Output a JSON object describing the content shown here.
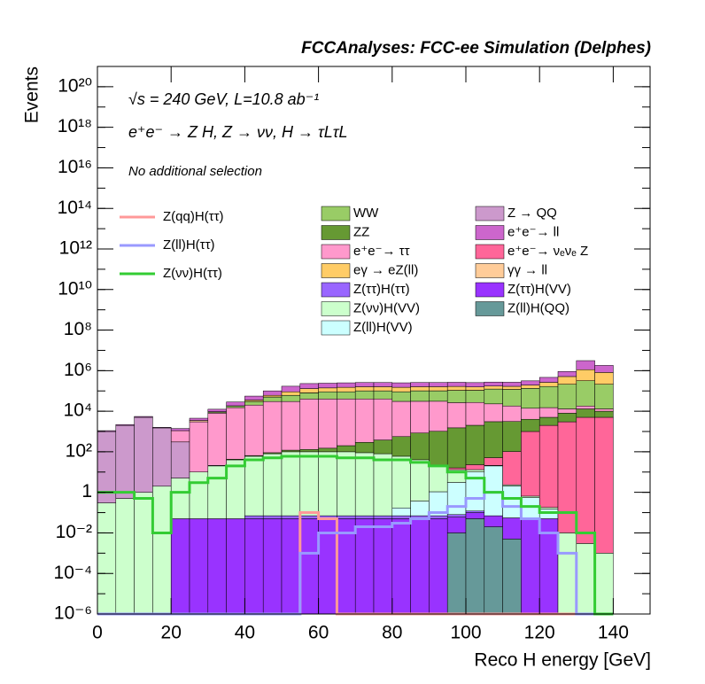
{
  "chart_data": {
    "type": "stacked_histogram",
    "title": "FCCAnalyses: FCC-ee Simulation (Delphes)",
    "annotations": [
      "√s = 240 GeV, L=10.8 ab⁻¹",
      "e⁺e⁻ → Z H, Z → νν, H → τLτL",
      "No additional selection"
    ],
    "x_label": "Reco H energy [GeV]",
    "y_label": "Events",
    "log_y": true,
    "xlim": [
      0,
      150
    ],
    "ylim": [
      1e-06,
      1e+21
    ],
    "xticks": [
      0,
      20,
      40,
      60,
      80,
      100,
      120,
      140
    ],
    "yticks": [
      {
        "value": 1e-06,
        "label": "10⁻⁶"
      },
      {
        "value": 0.0001,
        "label": "10⁻⁴"
      },
      {
        "value": 0.01,
        "label": "10⁻²"
      },
      1,
      {
        "value": 100,
        "label": "10²"
      },
      {
        "value": 10000.0,
        "label": "10⁴"
      },
      {
        "value": 1000000.0,
        "label": "10⁶"
      },
      {
        "value": 100000000.0,
        "label": "10⁸"
      },
      {
        "value": 10000000000.0,
        "label": "10¹⁰"
      },
      {
        "value": 1000000000000.0,
        "label": "10¹²"
      },
      {
        "value": 100000000000000.0,
        "label": "10¹⁴"
      },
      {
        "value": 1e+16,
        "label": "10¹⁶"
      },
      {
        "value": 1e+18,
        "label": "10¹⁸"
      },
      {
        "value": 1e+20,
        "label": "10²⁰"
      }
    ],
    "bins": [
      0,
      5,
      10,
      15,
      20,
      25,
      30,
      35,
      40,
      45,
      50,
      55,
      60,
      65,
      70,
      75,
      80,
      85,
      90,
      95,
      100,
      105,
      110,
      115,
      120,
      125,
      130,
      135,
      140
    ],
    "series": [
      {
        "name": "WW",
        "color": "#99cc66",
        "values": [
          0,
          0,
          0,
          0,
          0,
          0,
          1000,
          3000,
          10000,
          20000,
          30000,
          40000,
          50000,
          50000,
          60000,
          60000,
          60000,
          70000,
          70000,
          80000,
          80000,
          100000,
          100000,
          120000,
          150000,
          200000,
          300000,
          200000
        ]
      },
      {
        "name": "ZZ",
        "color": "#669933",
        "values": [
          0,
          0,
          0,
          0,
          0,
          0,
          1,
          3,
          5,
          10,
          20,
          30,
          50,
          100,
          200,
          300,
          500,
          800,
          1000,
          1500,
          2000,
          3000,
          3000,
          3000,
          3000,
          5000,
          8000,
          5000
        ]
      },
      {
        "name": "e⁺e⁻→ ττ",
        "color": "#ff99cc",
        "values": [
          0,
          0,
          0,
          0,
          800,
          3000,
          8000,
          15000,
          20000,
          30000,
          30000,
          40000,
          40000,
          40000,
          40000,
          40000,
          30000,
          30000,
          30000,
          25000,
          25000,
          20000,
          15000,
          10000,
          10000,
          5000,
          5000,
          3000
        ]
      },
      {
        "name": "eγ → eZ(ll)",
        "color": "#ffcc66",
        "values": [
          0,
          0,
          0,
          0,
          0,
          0,
          0,
          0,
          5000,
          10000,
          30000,
          50000,
          50000,
          60000,
          60000,
          60000,
          60000,
          60000,
          60000,
          60000,
          50000,
          50000,
          50000,
          60000,
          100000,
          300000,
          800000,
          600000
        ]
      },
      {
        "name": "Z(ττ)H(ττ)",
        "color": "#9966ff",
        "values": [
          0,
          0,
          0,
          0,
          0,
          0,
          0,
          0,
          0.02,
          0.02,
          0.02,
          0.02,
          0.02,
          0.02,
          0.02,
          0.02,
          0.02,
          0.02,
          0.02,
          0.02,
          0.02,
          0,
          0,
          0,
          0,
          0,
          0,
          0
        ]
      },
      {
        "name": "Z(νν)H(VV)",
        "color": "#ccffcc",
        "values": [
          0.3,
          0.5,
          1,
          2,
          5,
          10,
          20,
          40,
          60,
          80,
          100,
          100,
          100,
          100,
          90,
          80,
          60,
          40,
          20,
          10,
          3,
          1,
          0.3,
          0.1,
          0.03,
          0.01,
          0.003,
          0.001
        ]
      },
      {
        "name": "Z(ll)H(VV)",
        "color": "#ccffff",
        "values": [
          0,
          0,
          0,
          0,
          0,
          0,
          0,
          0,
          0,
          0,
          0,
          0,
          0,
          0,
          0,
          0,
          0.1,
          0.3,
          1,
          3,
          10,
          20,
          2,
          0.5,
          0.1,
          0,
          0,
          0
        ]
      },
      {
        "name": "Z → QQ",
        "color": "#cc99cc",
        "values": [
          1000,
          2000,
          5000,
          1500,
          300,
          0,
          0,
          0,
          0,
          0,
          0,
          0,
          0,
          0,
          0,
          0,
          0,
          0,
          0,
          0,
          0,
          0,
          0,
          0,
          0,
          0,
          0,
          0
        ]
      },
      {
        "name": "e⁺e⁻→ ll",
        "color": "#cc66cc",
        "values": [
          100,
          200,
          500,
          100,
          300,
          1000,
          3000,
          10000,
          20000,
          40000,
          80000,
          100000,
          100000,
          100000,
          100000,
          100000,
          100000,
          100000,
          100000,
          100000,
          100000,
          100000,
          100000,
          120000,
          200000,
          400000,
          2000000,
          1000000
        ]
      },
      {
        "name": "e⁺e⁻→ νₑνₑ Z",
        "color": "#ff6699",
        "values": [
          0,
          0,
          0,
          0,
          0,
          0,
          0,
          0,
          0,
          0,
          0,
          0,
          0,
          0,
          0,
          0,
          0,
          0,
          1,
          3,
          10,
          30,
          100,
          1000,
          2000,
          3000,
          5000,
          5000
        ]
      },
      {
        "name": "γγ → ll",
        "color": "#ffcc99",
        "values": [
          0,
          0,
          0,
          0,
          0,
          500,
          500,
          500,
          500,
          500,
          500,
          500,
          500,
          500,
          500,
          500,
          500,
          500,
          500,
          500,
          500,
          500,
          500,
          500,
          500,
          500,
          500,
          500
        ]
      },
      {
        "name": "Z(ττ)H(VV)",
        "color": "#9933ff",
        "values": [
          0,
          0,
          0,
          0,
          0.05,
          0.05,
          0.05,
          0.05,
          0.05,
          0.05,
          0.05,
          0.05,
          0.05,
          0.05,
          0.05,
          0.05,
          0.05,
          0.05,
          0.05,
          0.05,
          0.05,
          0.05,
          0.05,
          0.05,
          0.05,
          0,
          0,
          0
        ]
      },
      {
        "name": "Z(ll)H(QQ)",
        "color": "#669999",
        "values": [
          0,
          0,
          0,
          0,
          0,
          0,
          0,
          0,
          0,
          0,
          0,
          0,
          0,
          0,
          0,
          0,
          0,
          0,
          0,
          0.01,
          0.05,
          0.02,
          0.005,
          0,
          0,
          0,
          0,
          0
        ]
      }
    ],
    "lines": [
      {
        "name": "Z(qq)H(ττ)",
        "color": "#ff9999",
        "values": [
          0,
          0,
          0,
          0,
          0,
          0,
          0,
          0,
          0,
          0,
          0,
          0.1,
          0.05,
          0,
          0,
          0,
          0,
          0,
          0,
          0,
          0,
          0,
          0,
          0,
          0,
          0,
          0,
          0
        ]
      },
      {
        "name": "Z(ll)H(ττ)",
        "color": "#9999ff",
        "values": [
          0,
          0,
          0,
          0,
          0,
          0,
          0,
          0,
          0,
          0,
          0,
          0.001,
          0.01,
          0.01,
          0.02,
          0.02,
          0.03,
          0.05,
          0.1,
          0.2,
          0.5,
          1,
          0.2,
          0.05,
          0.01,
          0.001,
          0,
          0
        ]
      },
      {
        "name": "Z(νν)H(ττ)",
        "color": "#33cc33",
        "values": [
          1,
          1,
          0.5,
          0.01,
          1,
          3,
          5,
          20,
          40,
          50,
          60,
          60,
          60,
          50,
          50,
          40,
          40,
          30,
          20,
          10,
          5,
          1,
          0.5,
          0.2,
          0.1,
          0.1,
          0.01,
          0
        ]
      }
    ]
  }
}
